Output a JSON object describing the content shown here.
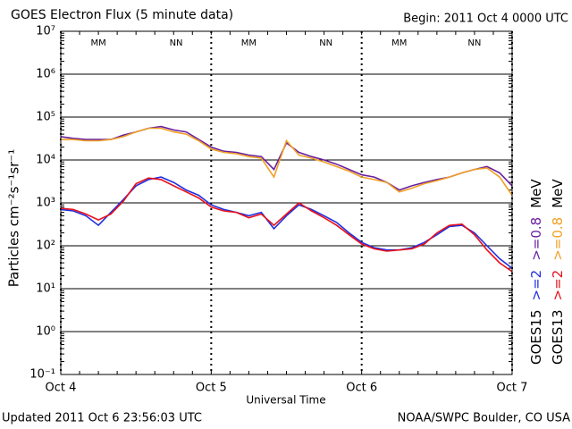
{
  "chart_data": {
    "type": "line",
    "title": "GOES Electron Flux (5 minute data)",
    "subtitle": "Begin: 2011 Oct 4 0000 UTC",
    "xlabel": "Universal Time",
    "ylabel": "Particles cm⁻²s⁻¹sr⁻¹",
    "footer_left": "Updated 2011 Oct  6 23:56:03 UTC",
    "footer_right": "NOAA/SWPC Boulder, CO USA",
    "unit": "MeV",
    "log_y": true,
    "grid": true,
    "threshold": 1000,
    "xlim": [
      0,
      72
    ],
    "xticks": [
      {
        "value": 0,
        "label": "Oct 4"
      },
      {
        "value": 24,
        "label": "Oct 5"
      },
      {
        "value": 48,
        "label": "Oct 6"
      },
      {
        "value": 72,
        "label": "Oct 7"
      }
    ],
    "ylim": [
      0.1,
      10000000
    ],
    "yticks": [
      {
        "value": 0.1,
        "label": "10⁻¹"
      },
      {
        "value": 1,
        "label": "10⁰"
      },
      {
        "value": 10,
        "label": "10¹"
      },
      {
        "value": 100,
        "label": "10²"
      },
      {
        "value": 1000,
        "label": "10³"
      },
      {
        "value": 10000,
        "label": "10⁴"
      },
      {
        "value": 100000,
        "label": "10⁵"
      },
      {
        "value": 1000000,
        "label": "10⁶"
      },
      {
        "value": 10000000,
        "label": "10⁷"
      }
    ],
    "annotations": [
      {
        "text": "MM",
        "x": 6,
        "color": "#3030c0"
      },
      {
        "text": "NN",
        "x": 18.4,
        "color": "#a02060"
      },
      {
        "text": "MM",
        "x": 30,
        "color": "#3030c0"
      },
      {
        "text": "NN",
        "x": 42.3,
        "color": "#a02060"
      },
      {
        "text": "MM",
        "x": 54,
        "color": "#3030c0"
      },
      {
        "text": "NN",
        "x": 66,
        "color": "#a02060"
      }
    ],
    "x": [
      0,
      2,
      4,
      6,
      8,
      10,
      12,
      14,
      16,
      18,
      20,
      22,
      24,
      26,
      28,
      30,
      32,
      34,
      36,
      38,
      40,
      42,
      44,
      46,
      48,
      50,
      52,
      54,
      56,
      58,
      60,
      62,
      64,
      66,
      68,
      70,
      72
    ],
    "series": [
      {
        "name": ">=2",
        "satellite": "GOES15",
        "color": "#1f2fe0",
        "values": [
          700,
          650,
          500,
          300,
          600,
          1200,
          2500,
          3500,
          4000,
          3000,
          2000,
          1500,
          900,
          700,
          600,
          500,
          600,
          250,
          500,
          900,
          700,
          500,
          350,
          200,
          120,
          90,
          80,
          80,
          90,
          120,
          180,
          280,
          300,
          200,
          100,
          50,
          30
        ]
      },
      {
        "name": ">=0.8",
        "satellite": "GOES15",
        "color": "#6a1fa0",
        "values": [
          35000,
          32000,
          30000,
          30000,
          30000,
          38000,
          45000,
          55000,
          60000,
          50000,
          45000,
          30000,
          20000,
          16000,
          15000,
          13000,
          12000,
          6000,
          25000,
          15000,
          12000,
          10000,
          8000,
          6000,
          4500,
          4000,
          3000,
          2000,
          2500,
          3000,
          3500,
          4000,
          5000,
          6000,
          7000,
          5000,
          2500
        ]
      },
      {
        "name": ">=2",
        "satellite": "GOES13",
        "color": "#e8101a",
        "values": [
          750,
          700,
          550,
          400,
          550,
          1100,
          2800,
          3800,
          3500,
          2500,
          1800,
          1300,
          800,
          650,
          600,
          450,
          550,
          300,
          550,
          1000,
          650,
          450,
          300,
          180,
          110,
          85,
          75,
          80,
          85,
          110,
          200,
          300,
          320,
          180,
          80,
          40,
          25
        ]
      },
      {
        "name": ">=0.8",
        "satellite": "GOES13",
        "color": "#f0a024",
        "values": [
          30000,
          30000,
          28000,
          28000,
          30000,
          35000,
          45000,
          55000,
          55000,
          45000,
          40000,
          28000,
          18000,
          15000,
          14000,
          12000,
          11000,
          4000,
          28000,
          13000,
          11000,
          9000,
          7000,
          5500,
          4000,
          3500,
          3000,
          1800,
          2200,
          2800,
          3300,
          4000,
          5000,
          6000,
          6500,
          4000,
          1500
        ]
      }
    ]
  }
}
